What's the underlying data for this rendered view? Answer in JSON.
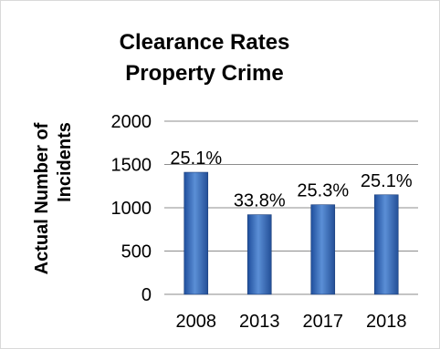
{
  "chart_data": {
    "type": "bar",
    "title_lines": [
      "Clearance Rates",
      "Property Crime"
    ],
    "ylabel_lines": [
      "Actual Number of",
      "Incidents"
    ],
    "xlabel": "",
    "categories": [
      "2008",
      "2013",
      "2017",
      "2018"
    ],
    "values": [
      1410,
      920,
      1035,
      1150
    ],
    "data_labels": [
      "25.1%",
      "33.8%",
      "25.3%",
      "25.1%"
    ],
    "ylim": [
      0,
      2000
    ],
    "yticks": [
      0,
      500,
      1000,
      1500,
      2000
    ],
    "grid": true,
    "legend": "none",
    "bar_color": "#3a6fbf"
  }
}
